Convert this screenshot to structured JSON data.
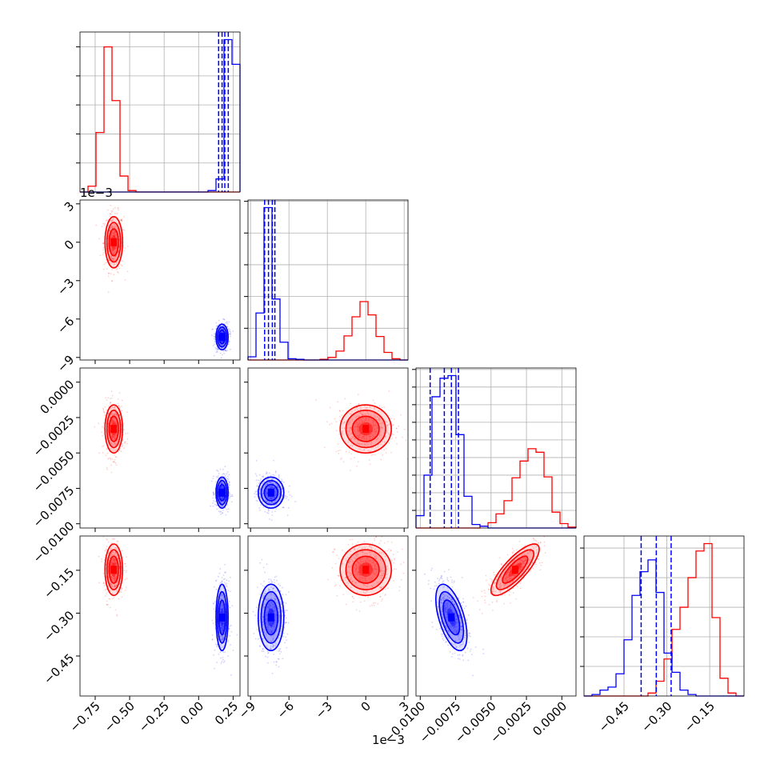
{
  "chart_data": {
    "type": "corner",
    "grid": true,
    "colors": {
      "series_a": "#ff0000",
      "series_b": "#0000ff",
      "grid": "#b0b0b0"
    },
    "parameters": [
      {
        "range": [
          -0.86,
          0.3
        ],
        "ticks": [
          -0.75,
          -0.5,
          -0.25,
          0.0,
          0.25
        ],
        "tick_labels": [
          "−0.75",
          "−0.50",
          "−0.25",
          "0.00",
          "0.25"
        ]
      },
      {
        "range": [
          -0.0092,
          0.0033
        ],
        "ticks": [
          -0.009,
          -0.006,
          -0.003,
          0.0,
          0.003
        ],
        "tick_labels": [
          "−9",
          "−6",
          "−3",
          "0",
          "3"
        ],
        "offset_label": "1e−3"
      },
      {
        "range": [
          -0.0103,
          0.001
        ],
        "ticks": [
          -0.01,
          -0.0075,
          -0.005,
          -0.0025,
          0.0
        ],
        "tick_labels": [
          "−0.0100",
          "−0.0075",
          "−0.0050",
          "−0.0025",
          "0.0000"
        ]
      },
      {
        "range": [
          -0.59,
          -0.03
        ],
        "ticks": [
          -0.45,
          -0.3,
          -0.15
        ],
        "tick_labels": [
          "−0.45",
          "−0.30",
          "−0.15"
        ]
      }
    ],
    "series": [
      {
        "color": "#ff0000",
        "mean": [
          -0.615,
          0.0,
          -0.0033,
          -0.148
        ],
        "sd": [
          0.032,
          0.001,
          0.00085,
          0.045
        ],
        "rho_2_3": 0.8
      },
      {
        "color": "#0000ff",
        "mean": [
          0.17,
          -0.0074,
          -0.0078,
          -0.315
        ],
        "sd": [
          0.022,
          0.0005,
          0.00055,
          0.058
        ],
        "rho_2_3": -0.55
      }
    ],
    "histograms": [
      {
        "bins": [
          -0.86,
          0.3
        ],
        "series": [
          {
            "color": "#ff0000",
            "values": [
              0,
              0.04,
              0.41,
              1.0,
              0.63,
              0.11,
              0.01,
              0,
              0,
              0,
              0,
              0,
              0,
              0,
              0,
              0,
              0,
              0,
              0,
              0
            ]
          },
          {
            "color": "#0000ff",
            "values": [
              0,
              0,
              0,
              0,
              0,
              0,
              0,
              0,
              0,
              0,
              0,
              0,
              0,
              0,
              0,
              0,
              0.01,
              0.09,
              1.05,
              0.88
            ]
          }
        ]
      },
      {
        "bins": [
          -0.0092,
          0.0033
        ],
        "series": [
          {
            "color": "#ff0000",
            "values": [
              0,
              0,
              0,
              0,
              0,
              0,
              0,
              0,
              0,
              0.01,
              0.04,
              0.14,
              0.38,
              0.68,
              0.92,
              0.71,
              0.37,
              0.12,
              0.02,
              0
            ]
          },
          {
            "color": "#0000ff",
            "values": [
              0.05,
              0.74,
              2.4,
              0.96,
              0.28,
              0.02,
              0.01,
              0,
              0,
              0,
              0,
              0,
              0,
              0,
              0,
              0,
              0,
              0,
              0,
              0
            ]
          }
        ]
      },
      {
        "bins": [
          -0.0103,
          0.001
        ],
        "series": [
          {
            "color": "#ff0000",
            "values": [
              0,
              0,
              0,
              0,
              0,
              0,
              0,
              0,
              0.02,
              0.06,
              0.16,
              0.31,
              0.57,
              0.76,
              0.9,
              0.86,
              0.58,
              0.18,
              0.05,
              0.01
            ]
          },
          {
            "color": "#0000ff",
            "values": [
              0.14,
              0.6,
              1.49,
              1.7,
              1.73,
              1.06,
              0.36,
              0.04,
              0.02,
              0,
              0,
              0,
              0,
              0,
              0,
              0,
              0,
              0,
              0,
              0
            ]
          }
        ]
      },
      {
        "bins": [
          -0.59,
          -0.03
        ],
        "series": [
          {
            "color": "#ff0000",
            "values": [
              0,
              0,
              0,
              0,
              0,
              0,
              0,
              0,
              0.02,
              0.1,
              0.25,
              0.45,
              0.6,
              0.8,
              0.98,
              1.03,
              0.53,
              0.12,
              0.02,
              0
            ]
          },
          {
            "color": "#0000ff",
            "values": [
              0,
              0.01,
              0.04,
              0.06,
              0.15,
              0.38,
              0.68,
              0.84,
              0.92,
              0.7,
              0.29,
              0.16,
              0.04,
              0.01,
              0,
              0,
              0,
              0,
              0,
              0
            ]
          }
        ]
      }
    ],
    "quantile_lines": [
      {
        "color": "#0000ff",
        "style": "dashed",
        "values": [
          0.145,
          0.17,
          0.19,
          0.215
        ]
      },
      {
        "color": "#0000ff",
        "style": "dashed",
        "values": [
          -0.0079,
          -0.0076,
          -0.0073,
          -0.0071
        ]
      },
      {
        "color": "#0000ff",
        "style": "dashed",
        "values": [
          -0.0093,
          -0.0083,
          -0.0078,
          -0.0073
        ]
      },
      {
        "color": "#0000ff",
        "style": "dashed",
        "values": [
          -0.39,
          -0.337,
          -0.285
        ]
      }
    ]
  }
}
